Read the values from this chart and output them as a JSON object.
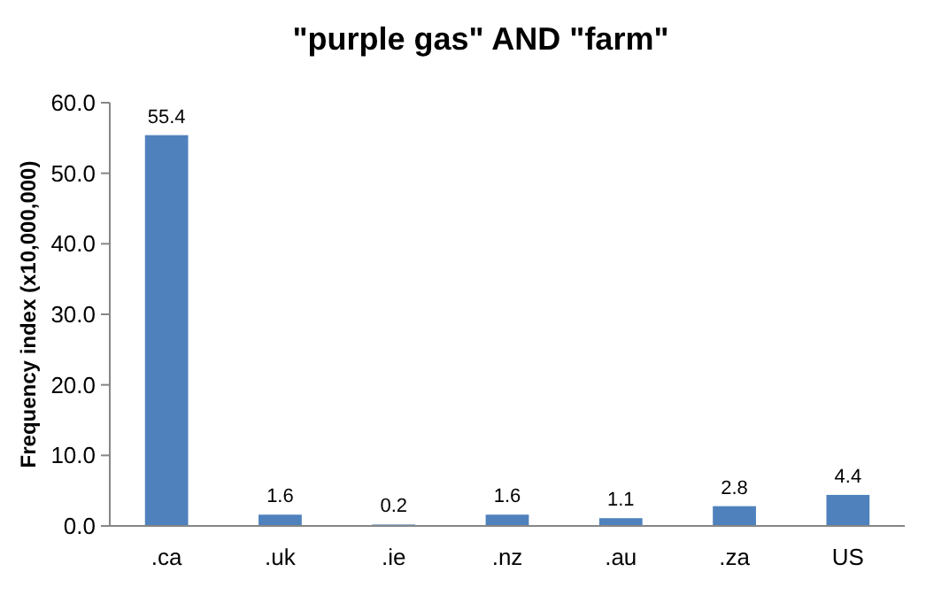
{
  "chart_data": {
    "type": "bar",
    "title": "\"purple gas\" AND \"farm\"",
    "ylabel": "Frequency index (x10,000,000)",
    "categories": [
      ".ca",
      ".uk",
      ".ie",
      ".nz",
      ".au",
      ".za",
      "US"
    ],
    "values": [
      55.4,
      1.6,
      0.2,
      1.6,
      1.1,
      2.8,
      4.4
    ],
    "color": "#4f81bd",
    "ylim": [
      0,
      60
    ],
    "yticks": [
      {
        "value": 0,
        "label": "0.0"
      },
      {
        "value": 10,
        "label": "10.0"
      },
      {
        "value": 20,
        "label": "20.0"
      },
      {
        "value": 30,
        "label": "30.0"
      },
      {
        "value": 40,
        "label": "40.0"
      },
      {
        "value": 50,
        "label": "50.0"
      },
      {
        "value": 60,
        "label": "60.0"
      }
    ],
    "data_labels": true
  }
}
